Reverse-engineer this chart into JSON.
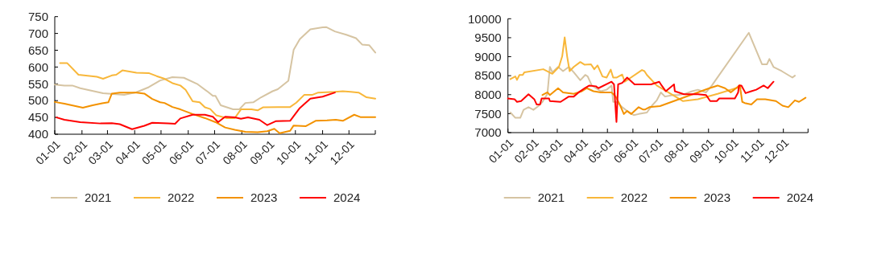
{
  "chart_data": [
    {
      "type": "line",
      "xlim": [
        "--01-01",
        "--12-31"
      ],
      "xticks": [
        {
          "value": "--01-01",
          "label": "01-01"
        },
        {
          "value": "--02-01",
          "label": "02-01"
        },
        {
          "value": "--03-01",
          "label": "03-01"
        },
        {
          "value": "--04-01",
          "label": "04-01"
        },
        {
          "value": "--05-01",
          "label": "05-01"
        },
        {
          "value": "--06-01",
          "label": "06-01"
        },
        {
          "value": "--07-01",
          "label": "07-01"
        },
        {
          "value": "--08-01",
          "label": "08-01"
        },
        {
          "value": "--09-01",
          "label": "09-01"
        },
        {
          "value": "--10-01",
          "label": "10-01"
        },
        {
          "value": "--11-01",
          "label": "11-01"
        },
        {
          "value": "--12-01",
          "label": "12-01"
        },
        {
          "value": "--12-31",
          "label": null
        }
      ],
      "ylim": [
        400,
        750
      ],
      "yticks": [
        400,
        450,
        500,
        550,
        600,
        650,
        700,
        750
      ],
      "legend": "bottom",
      "series": [
        {
          "name": "2021",
          "color": "#d6c4a2",
          "x": [
            "--01-01",
            "--01-12",
            "--01-21",
            "--01-30",
            "--02-25",
            "--03-20",
            "--04-03",
            "--04-17",
            "--04-30",
            "--05-14",
            "--05-27",
            "--06-11",
            "--06-24",
            "--06-29",
            "--07-02",
            "--07-08",
            "--07-22",
            "--07-29",
            "--08-05",
            "--08-14",
            "--08-23",
            "--09-05",
            "--09-11",
            "--09-23",
            "--09-29",
            "--10-06",
            "--10-18",
            "--11-01",
            "--11-05",
            "--11-15",
            "--11-28",
            "--12-09",
            "--12-16",
            "--12-24",
            "--12-31"
          ],
          "values": [
            548,
            545,
            545,
            537,
            522,
            517,
            525,
            540,
            560,
            570,
            568,
            550,
            525,
            514,
            514,
            486,
            474,
            474,
            493,
            495,
            510,
            528,
            534,
            559,
            651,
            683,
            712,
            718,
            719,
            706,
            696,
            686,
            667,
            665,
            643
          ]
        },
        {
          "name": "2022",
          "color": "#f8b73a",
          "x": [
            "--01-07",
            "--01-15",
            "--01-28",
            "--02-18",
            "--02-25",
            "--03-06",
            "--03-11",
            "--03-18",
            "--04-03",
            "--04-17",
            "--04-26",
            "--05-05",
            "--05-14",
            "--05-23",
            "--05-29",
            "--06-06",
            "--06-14",
            "--06-20",
            "--06-26",
            "--07-03",
            "--07-15",
            "--07-24",
            "--07-31",
            "--08-12",
            "--08-19",
            "--08-25",
            "--09-11",
            "--09-25",
            "--10-02",
            "--10-11",
            "--10-20",
            "--10-27",
            "--11-15",
            "--11-24",
            "--12-03",
            "--12-12",
            "--12-21",
            "--12-31"
          ],
          "values": [
            612,
            612,
            577,
            571,
            565,
            575,
            577,
            590,
            583,
            582,
            573,
            565,
            552,
            545,
            532,
            498,
            495,
            480,
            475,
            456,
            448,
            448,
            474,
            474,
            471,
            480,
            481,
            481,
            494,
            517,
            517,
            524,
            526,
            528,
            526,
            524,
            510,
            506
          ]
        },
        {
          "name": "2023",
          "color": "#f39200",
          "x": [
            "--01-01",
            "--01-12",
            "--02-02",
            "--02-13",
            "--02-24",
            "--03-02",
            "--03-06",
            "--03-15",
            "--04-03",
            "--04-12",
            "--04-21",
            "--04-30",
            "--05-05",
            "--05-14",
            "--05-23",
            "--06-06",
            "--06-20",
            "--07-02",
            "--07-13",
            "--07-24",
            "--08-05",
            "--08-19",
            "--08-30",
            "--09-07",
            "--09-13",
            "--09-25",
            "--09-29",
            "--10-13",
            "--10-24",
            "--11-06",
            "--11-16",
            "--11-24",
            "--12-07",
            "--12-14",
            "--12-31"
          ],
          "values": [
            496,
            491,
            479,
            486,
            492,
            495,
            521,
            524,
            524,
            521,
            505,
            495,
            493,
            481,
            474,
            460,
            448,
            436,
            420,
            413,
            407,
            406,
            409,
            416,
            403,
            410,
            426,
            424,
            440,
            441,
            443,
            440,
            458,
            451,
            451
          ]
        },
        {
          "name": "2024",
          "color": "#ff0000",
          "x": [
            "--01-03",
            "--01-12",
            "--01-30",
            "--02-22",
            "--03-06",
            "--03-15",
            "--03-29",
            "--04-12",
            "--04-21",
            "--05-09",
            "--05-17",
            "--05-23",
            "--06-06",
            "--06-20",
            "--06-29",
            "--07-05",
            "--07-13",
            "--07-24",
            "--07-31",
            "--08-08",
            "--08-21",
            "--08-30",
            "--09-09",
            "--09-25",
            "--10-06",
            "--10-18",
            "--11-01",
            "--11-15"
          ],
          "values": [
            450,
            443,
            436,
            432,
            433,
            430,
            415,
            425,
            434,
            432,
            431,
            447,
            458,
            458,
            452,
            436,
            452,
            450,
            446,
            450,
            443,
            427,
            439,
            440,
            478,
            506,
            512,
            524
          ]
        }
      ]
    },
    {
      "type": "line",
      "xlim": [
        "--01-01",
        "--12-31"
      ],
      "xticks": [
        {
          "value": "--01-01",
          "label": "01-01"
        },
        {
          "value": "--02-01",
          "label": "02-01"
        },
        {
          "value": "--03-01",
          "label": "03-01"
        },
        {
          "value": "--04-01",
          "label": "04-01"
        },
        {
          "value": "--05-01",
          "label": "05-01"
        },
        {
          "value": "--06-01",
          "label": "06-01"
        },
        {
          "value": "--07-01",
          "label": "07-01"
        },
        {
          "value": "--08-01",
          "label": "08-01"
        },
        {
          "value": "--09-01",
          "label": "09-01"
        },
        {
          "value": "--10-01",
          "label": "10-01"
        },
        {
          "value": "--11-01",
          "label": "11-01"
        },
        {
          "value": "--12-01",
          "label": "12-01"
        },
        {
          "value": "--12-31",
          "label": null
        }
      ],
      "ylim": [
        7000,
        10000
      ],
      "yticks": [
        7000,
        7500,
        8000,
        8500,
        9000,
        9500,
        10000
      ],
      "legend": "bottom",
      "series": [
        {
          "name": "2021",
          "color": "#d6c4a2",
          "x": [
            "--01-04",
            "--01-10",
            "--01-16",
            "--01-20",
            "--01-26",
            "--02-01",
            "--02-07",
            "--02-12",
            "--02-18",
            "--02-21",
            "--02-24",
            "--03-02",
            "--03-08",
            "--03-15",
            "--03-21",
            "--03-29",
            "--04-04",
            "--04-07",
            "--04-12",
            "--04-17",
            "--04-23",
            "--04-30",
            "--05-06",
            "--05-08",
            "--05-12",
            "--05-19",
            "--05-25",
            "--06-02",
            "--06-08",
            "--06-18",
            "--06-24",
            "--06-30",
            "--07-05",
            "--07-10",
            "--07-20",
            "--07-26",
            "--08-03",
            "--08-12",
            "--08-19",
            "--08-29",
            "--09-05",
            "--10-20",
            "--11-05",
            "--11-11",
            "--11-14",
            "--11-19",
            "--11-29",
            "--12-12",
            "--12-15"
          ],
          "values": [
            7530,
            7390,
            7390,
            7600,
            7670,
            7600,
            7700,
            7810,
            8020,
            8730,
            8590,
            8730,
            8620,
            8730,
            8590,
            8380,
            8520,
            8480,
            8240,
            8170,
            8090,
            8130,
            8240,
            7810,
            7810,
            7670,
            7570,
            7460,
            7490,
            7530,
            7710,
            7850,
            8060,
            7950,
            7990,
            7990,
            8020,
            8090,
            8130,
            8060,
            8240,
            9630,
            8800,
            8800,
            8940,
            8730,
            8620,
            8450,
            8500
          ]
        },
        {
          "name": "2022",
          "color": "#f8b73a",
          "x": [
            "--01-04",
            "--01-10",
            "--01-12",
            "--01-15",
            "--01-19",
            "--01-21",
            "--02-13",
            "--02-24",
            "--03-03",
            "--03-07",
            "--03-10",
            "--03-13",
            "--03-16",
            "--03-21",
            "--03-29",
            "--04-03",
            "--04-11",
            "--04-15",
            "--04-19",
            "--04-25",
            "--04-30",
            "--05-05",
            "--05-08",
            "--05-12",
            "--05-19",
            "--05-22",
            "--06-12",
            "--06-15",
            "--06-18",
            "--06-30",
            "--07-14",
            "--08-01",
            "--08-19",
            "--09-12",
            "--10-09",
            "--10-10"
          ],
          "values": [
            8410,
            8480,
            8390,
            8520,
            8520,
            8590,
            8670,
            8550,
            8730,
            9010,
            9510,
            9010,
            8620,
            8730,
            8860,
            8790,
            8800,
            8670,
            8770,
            8480,
            8450,
            8660,
            8450,
            8450,
            8530,
            8340,
            8650,
            8620,
            8520,
            8240,
            8060,
            7830,
            7880,
            8020,
            8200,
            8170
          ]
        },
        {
          "name": "2023",
          "color": "#f39200",
          "x": [
            "--02-12",
            "--02-18",
            "--02-21",
            "--03-02",
            "--03-08",
            "--03-21",
            "--03-31",
            "--04-06",
            "--04-14",
            "--04-23",
            "--05-06",
            "--05-11",
            "--05-16",
            "--05-21",
            "--05-25",
            "--05-30",
            "--06-08",
            "--06-13",
            "--06-16",
            "--06-21",
            "--07-04",
            "--09-02",
            "--09-12",
            "--09-21",
            "--09-28",
            "--10-09",
            "--10-12",
            "--10-15",
            "--10-23",
            "--10-30",
            "--11-09",
            "--11-22",
            "--11-30",
            "--12-07",
            "--12-15",
            "--12-20",
            "--12-28"
          ],
          "values": [
            7990,
            8060,
            7990,
            8170,
            8060,
            8020,
            8090,
            8170,
            8090,
            8060,
            8060,
            7950,
            7740,
            7490,
            7570,
            7490,
            7670,
            7610,
            7610,
            7670,
            7700,
            8170,
            8240,
            8170,
            8060,
            8250,
            7810,
            7780,
            7740,
            7880,
            7880,
            7830,
            7710,
            7670,
            7850,
            7810,
            7920
          ]
        },
        {
          "name": "2024",
          "color": "#ff0000",
          "x": [
            "--01-01",
            "--01-09",
            "--01-12",
            "--01-17",
            "--01-26",
            "--02-02",
            "--02-05",
            "--02-09",
            "--02-11",
            "--02-20",
            "--02-21",
            "--03-05",
            "--03-15",
            "--03-21",
            "--03-27",
            "--04-04",
            "--04-09",
            "--04-17",
            "--04-20",
            "--05-06",
            "--05-09",
            "--05-12",
            "--05-14",
            "--05-19",
            "--05-25",
            "--06-03",
            "--06-23",
            "--07-03",
            "--07-06",
            "--07-11",
            "--07-21",
            "--07-22",
            "--08-02",
            "--08-19",
            "--08-29",
            "--09-03",
            "--09-11",
            "--09-14",
            "--10-03",
            "--10-07",
            "--10-08",
            "--10-11",
            "--10-16",
            "--10-23",
            "--10-29",
            "--11-07",
            "--11-12",
            "--11-19"
          ],
          "values": [
            7900,
            7880,
            7810,
            7830,
            8010,
            7880,
            7740,
            7740,
            7900,
            7900,
            7830,
            7810,
            7950,
            7950,
            8060,
            8180,
            8240,
            8220,
            8170,
            8340,
            8270,
            7280,
            8270,
            8310,
            8450,
            8270,
            8270,
            8340,
            8240,
            8090,
            8270,
            8090,
            8010,
            8010,
            7990,
            7830,
            7830,
            7900,
            7900,
            8060,
            8240,
            8240,
            8040,
            8090,
            8130,
            8240,
            8170,
            8340
          ]
        }
      ]
    }
  ]
}
